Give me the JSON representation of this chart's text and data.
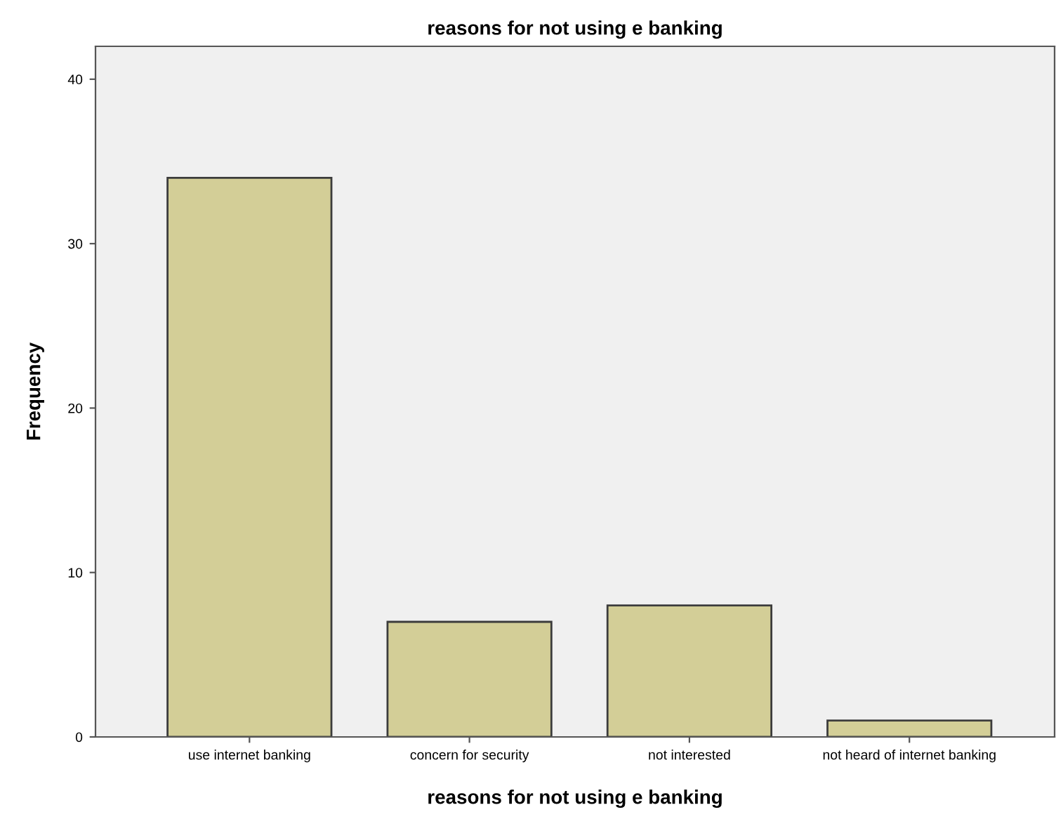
{
  "chart_data": {
    "type": "bar",
    "title": "reasons for not using e banking",
    "xlabel": "reasons for not using e banking",
    "ylabel": "Frequency",
    "categories": [
      "use internet banking",
      "concern for security",
      "not interested",
      "not heard of internet banking"
    ],
    "values": [
      34,
      7,
      8,
      1
    ],
    "color": "#d3ce97",
    "ylim": [
      0,
      42
    ],
    "yticks": [
      0,
      10,
      20,
      30,
      40
    ],
    "grid": false,
    "legend": false
  }
}
